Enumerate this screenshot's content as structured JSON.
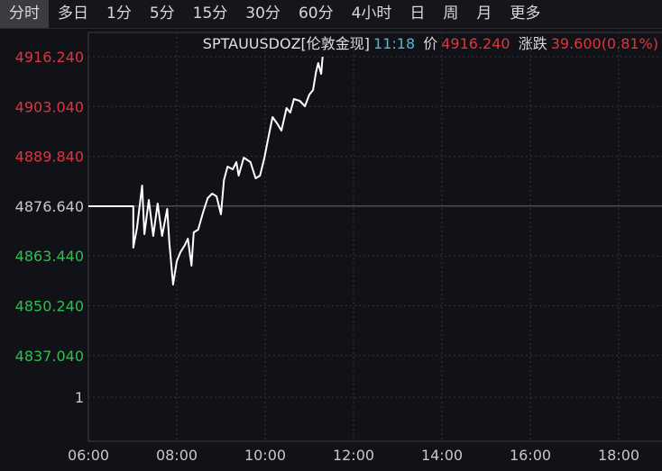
{
  "tabs": [
    "分时",
    "多日",
    "1分",
    "5分",
    "15分",
    "30分",
    "60分",
    "4小时",
    "日",
    "周",
    "月",
    "更多"
  ],
  "active_tab": "分时",
  "header": {
    "symbol": "SPTAUUSDOZ[伦敦金现]",
    "time": "11:18",
    "price_label": "价",
    "price": "4916.240",
    "change_label": "涨跌",
    "change": "39.600(0.81%)"
  },
  "colors": {
    "up": "#e0353b",
    "down": "#2fbf4f",
    "neutral": "#c8c8c8",
    "line": "#ffffff",
    "time": "#4fb8d8"
  },
  "chart_data": {
    "type": "line",
    "reference_price": 4876.64,
    "y_ticks": [
      "4916.240",
      "4903.040",
      "4889.840",
      "4876.640",
      "4863.440",
      "4850.240",
      "4837.040",
      "1"
    ],
    "x_ticks": [
      "06:00",
      "08:00",
      "10:00",
      "12:00",
      "14:00",
      "16:00",
      "18:00"
    ],
    "x_range": [
      "06:00",
      "18:40"
    ],
    "grid": true,
    "series": [
      {
        "points": [
          [
            "06:00",
            4876.64
          ],
          [
            "07:01",
            4876.64
          ],
          [
            "07:01",
            4865.66
          ],
          [
            "07:06",
            4870.91
          ],
          [
            "07:13",
            4882.13
          ],
          [
            "07:16",
            4869.24
          ],
          [
            "07:22",
            4878.31
          ],
          [
            "07:28",
            4868.76
          ],
          [
            "07:34",
            4877.36
          ],
          [
            "07:40",
            4868.76
          ],
          [
            "07:47",
            4875.92
          ],
          [
            "07:50",
            4866.85
          ],
          [
            "07:55",
            4855.87
          ],
          [
            "08:00",
            4862.08
          ],
          [
            "08:05",
            4864.47
          ],
          [
            "08:11",
            4866.38
          ],
          [
            "08:15",
            4868.05
          ],
          [
            "08:20",
            4860.89
          ],
          [
            "08:23",
            4869.72
          ],
          [
            "08:29",
            4870.43
          ],
          [
            "08:36",
            4875.21
          ],
          [
            "08:42",
            4878.79
          ],
          [
            "08:48",
            4879.98
          ],
          [
            "08:54",
            4879.27
          ],
          [
            "09:00",
            4874.49
          ],
          [
            "09:04",
            4883.56
          ],
          [
            "09:09",
            4887.14
          ],
          [
            "09:16",
            4886.43
          ],
          [
            "09:21",
            4888.34
          ],
          [
            "09:24",
            4884.76
          ],
          [
            "09:31",
            4889.53
          ],
          [
            "09:40",
            4888.34
          ],
          [
            "09:47",
            4884.04
          ],
          [
            "09:53",
            4884.76
          ],
          [
            "09:59",
            4889.53
          ],
          [
            "10:05",
            4895.5
          ],
          [
            "10:10",
            4900.27
          ],
          [
            "10:17",
            4898.36
          ],
          [
            "10:22",
            4896.69
          ],
          [
            "10:29",
            4902.66
          ],
          [
            "10:34",
            4901.46
          ],
          [
            "10:39",
            4905.05
          ],
          [
            "10:47",
            4904.57
          ],
          [
            "10:54",
            4903.14
          ],
          [
            "11:00",
            4906.24
          ],
          [
            "11:05",
            4907.43
          ],
          [
            "11:09",
            4912.21
          ],
          [
            "11:12",
            4914.59
          ],
          [
            "11:16",
            4911.73
          ],
          [
            "11:18",
            4916.24
          ]
        ]
      }
    ]
  }
}
